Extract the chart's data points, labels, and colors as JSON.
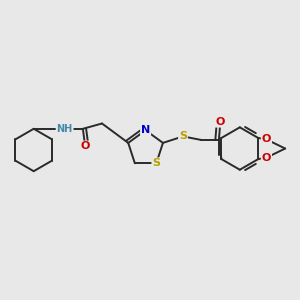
{
  "background_color": "#e8e8e8",
  "bond_color": "#2a2a2a",
  "atom_colors": {
    "N": "#0000cc",
    "O": "#cc0000",
    "S": "#b8a000",
    "NH": "#4488aa",
    "C": "#2a2a2a"
  },
  "figsize": [
    3.0,
    3.0
  ],
  "dpi": 100
}
